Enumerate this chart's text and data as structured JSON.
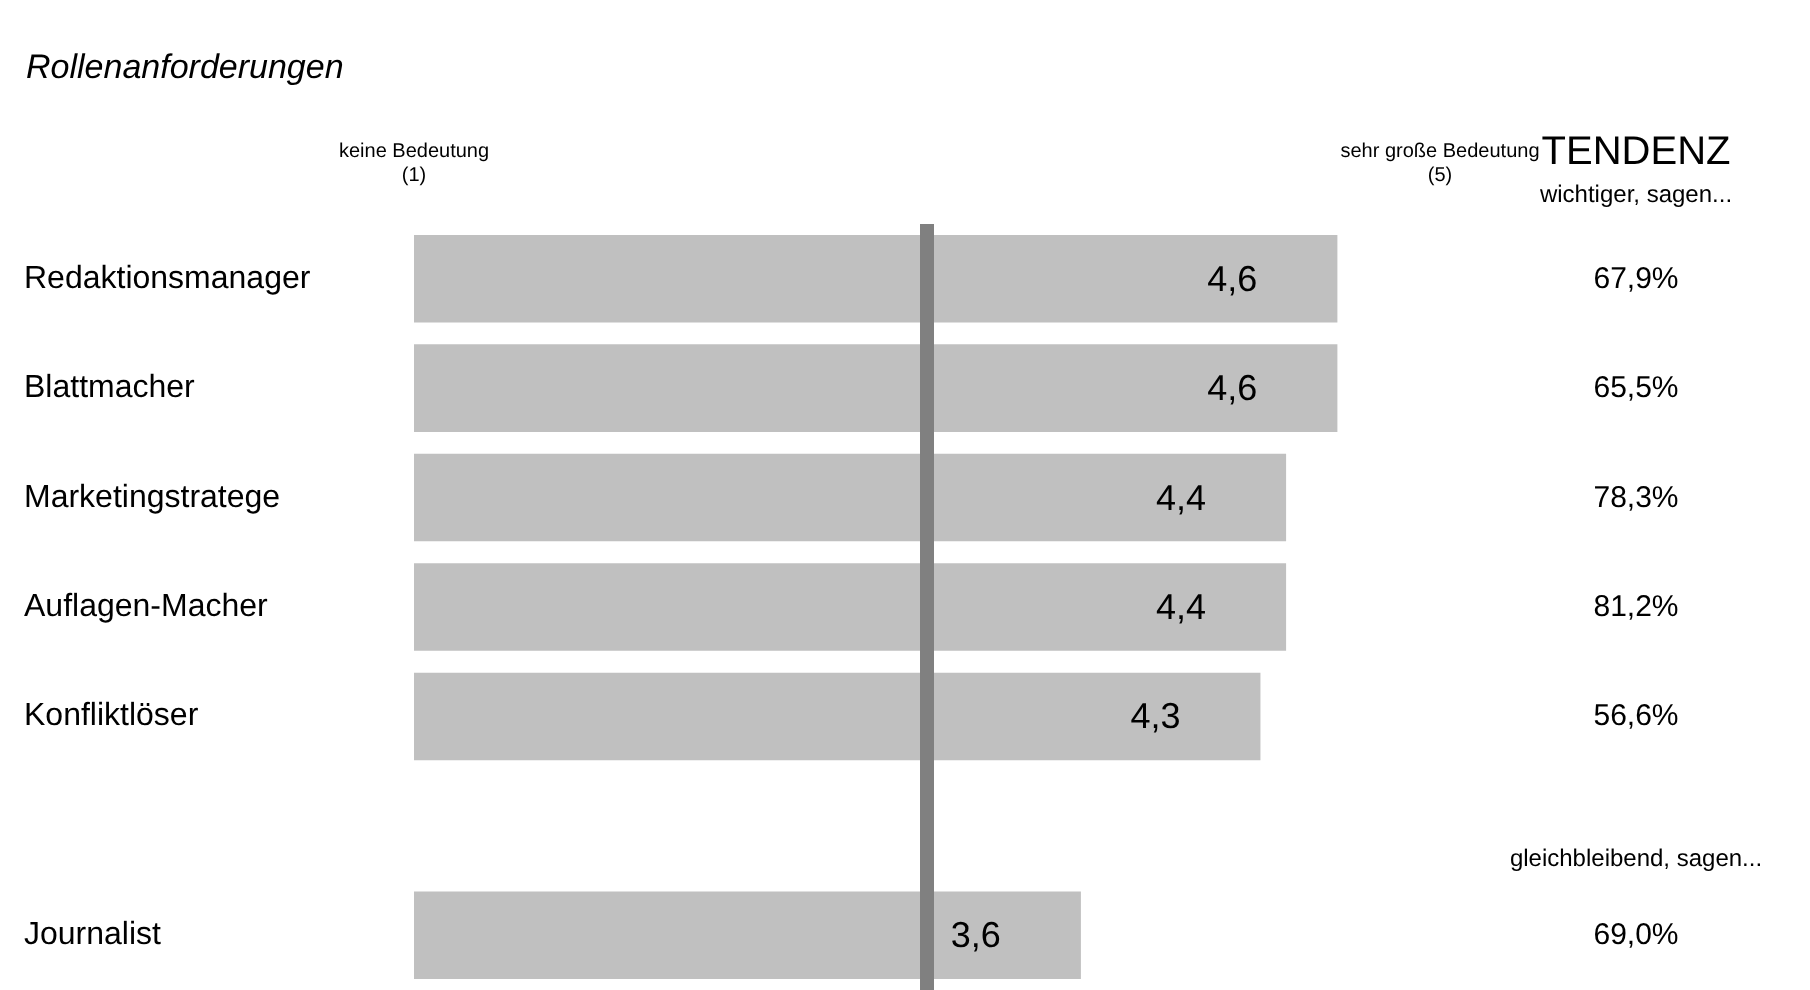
{
  "chart_data": {
    "type": "bar",
    "orientation": "horizontal",
    "title": "Rollenanforderungen",
    "categories": [
      "Redaktionsmanager",
      "Blattmacher",
      "Marketingstratege",
      "Auflagen-Macher",
      "Konfliktlöser",
      null,
      "Journalist"
    ],
    "base": [
      1,
      1,
      1,
      1,
      1,
      null,
      1
    ],
    "values": [
      3.6,
      3.6,
      3.4,
      3.4,
      3.3,
      null,
      2.6
    ],
    "value_labels": [
      "4,6",
      "4,6",
      "4,4",
      "4,4",
      "4,3",
      null,
      "3,6"
    ],
    "color": "#c0c0c0",
    "xlim": [
      1,
      5
    ],
    "xticks": [
      {
        "value": 1,
        "label": "keine Bedeutung\n(1)"
      },
      {
        "value": 5,
        "label": "sehr große Bedeutung\n(5)"
      }
    ],
    "ref_lines": [
      {
        "axis": "x",
        "value": 3,
        "label": null,
        "color": "#808080"
      }
    ],
    "grid": false,
    "annotations": [
      "TENDENZ",
      "wichtiger, sagen...",
      "67,9%",
      "65,5%",
      "78,3%",
      "81,2%",
      "56,6%",
      "gleichbleibend, sagen...",
      "69,0%"
    ]
  }
}
